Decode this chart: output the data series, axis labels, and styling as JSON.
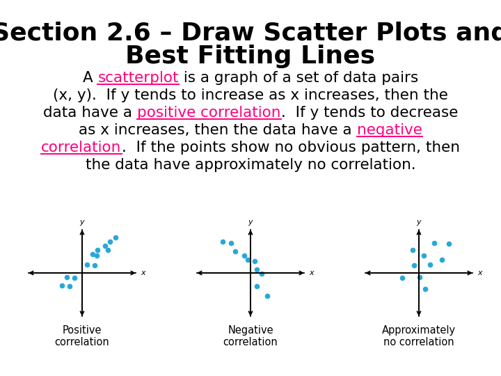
{
  "title_line1": "Section 2.6 – Draw Scatter Plots and",
  "title_line2": "Best Fitting Lines",
  "title_fontsize": 26,
  "bg_color": "#ffffff",
  "body_color": "#000000",
  "highlight_color": "#ff007f",
  "dot_color": "#29a8d8",
  "scatter_label_fontsize": 10.5,
  "positive_points": [
    [
      0.3,
      0.55
    ],
    [
      0.55,
      0.75
    ],
    [
      0.65,
      0.85
    ],
    [
      0.45,
      0.65
    ],
    [
      0.5,
      0.55
    ],
    [
      0.2,
      0.45
    ],
    [
      0.28,
      0.42
    ],
    [
      0.1,
      0.2
    ],
    [
      0.25,
      0.18
    ],
    [
      -0.3,
      -0.1
    ],
    [
      -0.15,
      -0.12
    ],
    [
      -0.4,
      -0.3
    ],
    [
      -0.25,
      -0.32
    ]
  ],
  "negative_points": [
    [
      -0.55,
      0.75
    ],
    [
      -0.38,
      0.72
    ],
    [
      -0.3,
      0.52
    ],
    [
      -0.12,
      0.42
    ],
    [
      -0.05,
      0.32
    ],
    [
      0.08,
      0.28
    ],
    [
      0.12,
      0.08
    ],
    [
      0.22,
      -0.02
    ],
    [
      0.12,
      -0.32
    ],
    [
      0.32,
      -0.55
    ]
  ],
  "no_corr_points": [
    [
      0.3,
      0.72
    ],
    [
      0.58,
      0.7
    ],
    [
      0.1,
      0.42
    ],
    [
      0.45,
      0.32
    ],
    [
      -0.12,
      0.55
    ],
    [
      -0.1,
      0.18
    ],
    [
      0.22,
      0.2
    ],
    [
      -0.32,
      -0.12
    ],
    [
      0.02,
      -0.1
    ],
    [
      0.12,
      -0.38
    ]
  ]
}
